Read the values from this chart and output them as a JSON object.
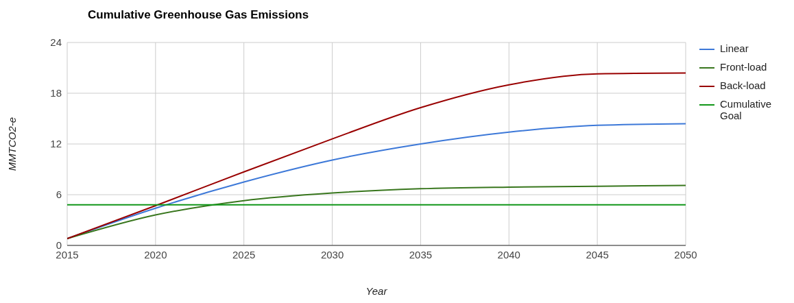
{
  "chart_data": {
    "type": "line",
    "title": "Cumulative Greenhouse Gas Emissions",
    "xlabel": "Year",
    "ylabel": "MMTCO2-e",
    "x": [
      2015,
      2020,
      2025,
      2030,
      2035,
      2040,
      2045,
      2050
    ],
    "series": [
      {
        "name": "Linear",
        "color": "#3c78d8",
        "values": [
          0.8,
          4.4,
          7.5,
          10.1,
          12.0,
          13.4,
          14.2,
          14.4
        ]
      },
      {
        "name": "Front-load",
        "color": "#38761d",
        "values": [
          0.8,
          3.6,
          5.3,
          6.2,
          6.7,
          6.9,
          7.0,
          7.1
        ]
      },
      {
        "name": "Back-load",
        "color": "#990000",
        "values": [
          0.8,
          4.7,
          8.7,
          12.6,
          16.3,
          19.0,
          20.3,
          20.4
        ]
      },
      {
        "name": "Cumulative Goal",
        "color": "#109618",
        "x": [
          2015,
          2050
        ],
        "values": [
          4.8,
          4.8
        ]
      }
    ],
    "xlim": [
      2015,
      2050
    ],
    "xticks": [
      2015,
      2020,
      2025,
      2030,
      2035,
      2040,
      2045,
      2050
    ],
    "ylim": [
      0,
      24
    ],
    "yticks": [
      0,
      6,
      12,
      18,
      24
    ],
    "grid": true,
    "legend": "right",
    "marker": "none",
    "line_style": "solid"
  }
}
